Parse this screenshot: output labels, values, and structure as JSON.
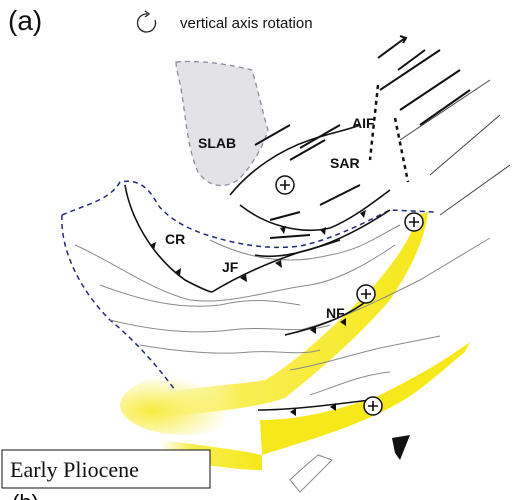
{
  "panel_label": "(a)",
  "next_panel_label": "(b)",
  "legend": {
    "rotation_icon": "vertical-axis-rotation-icon",
    "rotation_text": "vertical axis rotation"
  },
  "labels": {
    "slab": "SLAB",
    "aif": "AIF",
    "sar": "SAR",
    "cr": "CR",
    "jf": "JF",
    "nf": "NF"
  },
  "title_box": "Early Pliocene",
  "colors": {
    "slab_fill": "#e3e3e5",
    "slab_outline": "#8a8aa8",
    "basin_outline": "#1f2a7a",
    "highlight": "#f6e81a",
    "fault": "#111111",
    "coast": "#8a8a8a"
  }
}
